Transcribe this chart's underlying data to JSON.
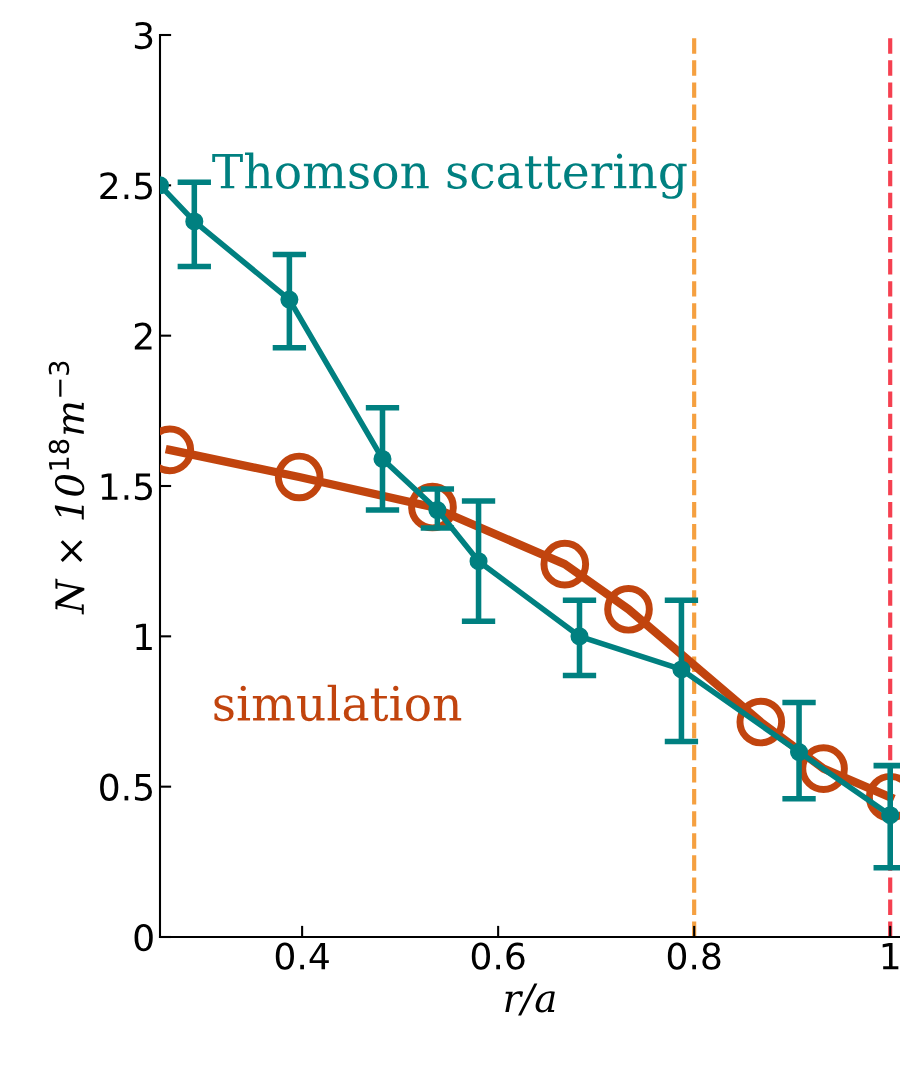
{
  "chart_data": {
    "type": "line",
    "xlabel": "r/a",
    "ylabel": "N × 10$^{18}$m$^{−3}$",
    "xlim": [
      0.255,
      1.01
    ],
    "ylim": [
      0,
      3
    ],
    "xticks": [
      0.4,
      0.6,
      0.8,
      1
    ],
    "yticks": [
      0,
      0.5,
      1,
      1.5,
      2,
      2.5,
      3
    ],
    "grid": false,
    "legend": false,
    "marker": "circle",
    "line_style": "solid",
    "series": [
      {
        "name": "Thomson scattering",
        "color": "#008080",
        "x": [
          0.255,
          0.29,
          0.387,
          0.482,
          0.538,
          0.58,
          0.683,
          0.787,
          0.907,
          1.0
        ],
        "values": [
          2.5,
          2.38,
          2.12,
          1.59,
          1.42,
          1.25,
          1.0,
          0.89,
          0.615,
          0.405
        ],
        "errors": [
          null,
          [
            2.23,
            2.51
          ],
          [
            1.96,
            2.27
          ],
          [
            1.42,
            1.76
          ],
          [
            1.36,
            1.49
          ],
          [
            1.05,
            1.45
          ],
          [
            0.87,
            1.12
          ],
          [
            0.65,
            1.12
          ],
          [
            0.46,
            0.78
          ],
          [
            0.23,
            0.57
          ]
        ]
      },
      {
        "name": "simulation",
        "color": "#c1440e",
        "x": [
          0.265,
          0.397,
          0.533,
          0.668,
          0.733,
          0.868,
          0.932,
          1.0
        ],
        "values": [
          1.62,
          1.53,
          1.43,
          1.24,
          1.09,
          0.715,
          0.56,
          0.465
        ]
      }
    ],
    "ref_lines": [
      {
        "axis": "x",
        "value": 0.8,
        "color": "#f5a040",
        "line_style": "dashed"
      },
      {
        "axis": "x",
        "value": 1.0,
        "color": "#f54050",
        "line_style": "dashed"
      }
    ]
  }
}
